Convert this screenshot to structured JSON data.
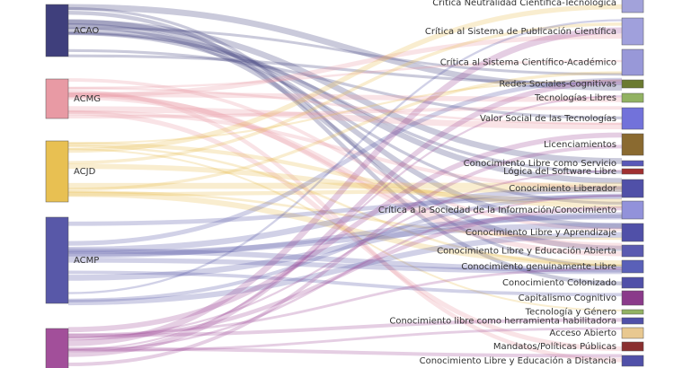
{
  "nodes_left": [
    {
      "label": "ACAO",
      "color": "#3f3f7c"
    },
    {
      "label": "ACMG",
      "color": "#e89aa4"
    },
    {
      "label": "ACJD",
      "color": "#e8c052"
    },
    {
      "label": "ACMP",
      "color": "#5858a8"
    },
    {
      "label": null,
      "color": "#a24f9a"
    }
  ],
  "nodes_right": [
    {
      "label": "Crítica Neutralidad Científica-Tecnológica",
      "color": "#a2a2da"
    },
    {
      "label": "Crítica al Sistema de Publicación Científica",
      "color": "#a0a0dc"
    },
    {
      "label": "Crítica al Sistema Científico-Académico",
      "color": "#9898d8"
    },
    {
      "label": "Redes Sociales-Cognitivas",
      "color": "#6b7a30"
    },
    {
      "label": "Tecnologías Libres",
      "color": "#92b262"
    },
    {
      "label": "Valor Social de las Tecnologías",
      "color": "#7272da"
    },
    {
      "label": "Licenciamientos",
      "color": "#8a6a30"
    },
    {
      "label": "Conocimiento Libre como Servicio",
      "color": "#5858b8"
    },
    {
      "label": "Lógica del Software Libre",
      "color": "#a03030"
    },
    {
      "label": "Conocimiento Liberador",
      "color": "#5050a8"
    },
    {
      "label": "Crítica a la Sociedad de la Información/Conocimiento",
      "color": "#9292da"
    },
    {
      "label": "Conocimiento Libre y Aprendizaje",
      "color": "#5050a8"
    },
    {
      "label": "Conocimiento Libre y Educación Abierta",
      "color": "#5a5ab0"
    },
    {
      "label": "Conocimiento genuinamente Libre",
      "color": "#5a60b8"
    },
    {
      "label": "Conocimiento Colonizado",
      "color": "#5050a8"
    },
    {
      "label": "Capitalismo Cognitivo",
      "color": "#8a3a8a"
    },
    {
      "label": "Tecnología y Género",
      "color": "#92b262"
    },
    {
      "label": "Conocimiento libre como herramienta habilitadora",
      "color": "#5050a8"
    },
    {
      "label": "Acceso Abierto",
      "color": "#e8c890"
    },
    {
      "label": "Mandatos/Políticas Públicas",
      "color": "#8a3030"
    },
    {
      "label": "Conocimiento Libre y Educación a Distancia",
      "color": "#5050a8"
    }
  ]
}
